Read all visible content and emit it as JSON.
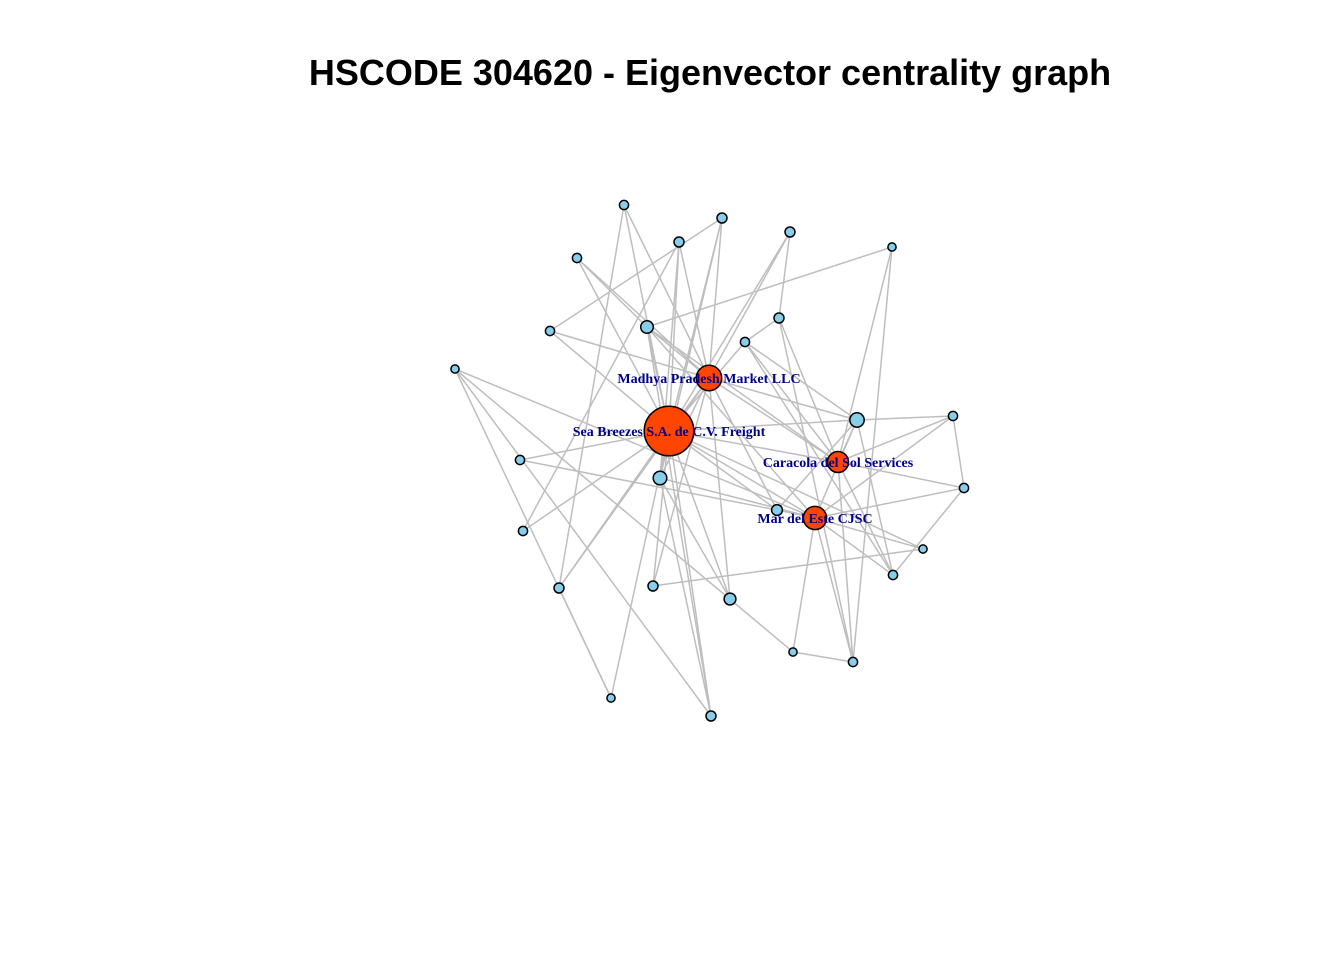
{
  "title": "HSCODE 304620 - Eigenvector centrality graph",
  "colors": {
    "edge": "#bebebe",
    "node_low": "#87ceeb",
    "node_high": "#ff4500",
    "node_border": "#000000",
    "label": "#00008b"
  },
  "nodes": [
    {
      "id": "sea_breezes",
      "label": "Sea Breezes S.A. de C.V. Freight",
      "group": "high",
      "centrality": 1.0
    },
    {
      "id": "madhya_pradesh",
      "label": "Madhya Pradesh Market LLC",
      "group": "high",
      "centrality": 0.45
    },
    {
      "id": "caracola",
      "label": "Caracola del Sol Services",
      "group": "high",
      "centrality": 0.35
    },
    {
      "id": "mar_del_este",
      "label": "Mar del Este CJSC",
      "group": "high",
      "centrality": 0.4
    },
    {
      "id": "n1",
      "label": "",
      "group": "low",
      "centrality": 0.18
    },
    {
      "id": "n2",
      "label": "",
      "group": "low",
      "centrality": 0.2
    },
    {
      "id": "n3",
      "label": "",
      "group": "low",
      "centrality": 0.16
    },
    {
      "id": "n4",
      "label": "",
      "group": "low",
      "centrality": 0.08
    },
    {
      "id": "n5",
      "label": "",
      "group": "low",
      "centrality": 0.14
    },
    {
      "id": "n6",
      "label": "",
      "group": "low",
      "centrality": 0.12
    },
    {
      "id": "n7",
      "label": "",
      "group": "low",
      "centrality": 0.1
    },
    {
      "id": "n8",
      "label": "",
      "group": "low",
      "centrality": 0.1
    },
    {
      "id": "n9",
      "label": "",
      "group": "low",
      "centrality": 0.1
    },
    {
      "id": "n10",
      "label": "",
      "group": "low",
      "centrality": 0.1
    },
    {
      "id": "n11",
      "label": "",
      "group": "low",
      "centrality": 0.08
    },
    {
      "id": "n12",
      "label": "",
      "group": "low",
      "centrality": 0.06
    },
    {
      "id": "n13",
      "label": "",
      "group": "low",
      "centrality": 0.1
    },
    {
      "id": "n14",
      "label": "",
      "group": "low",
      "centrality": 0.08
    },
    {
      "id": "n15",
      "label": "",
      "group": "low",
      "centrality": 0.08
    },
    {
      "id": "n16",
      "label": "",
      "group": "low",
      "centrality": 0.08
    },
    {
      "id": "n17",
      "label": "",
      "group": "low",
      "centrality": 0.08
    },
    {
      "id": "n18",
      "label": "",
      "group": "low",
      "centrality": 0.08
    },
    {
      "id": "n19",
      "label": "",
      "group": "low",
      "centrality": 0.1
    },
    {
      "id": "n20",
      "label": "",
      "group": "low",
      "centrality": 0.08
    },
    {
      "id": "n21",
      "label": "",
      "group": "low",
      "centrality": 0.1
    },
    {
      "id": "n22",
      "label": "",
      "group": "low",
      "centrality": 0.08
    },
    {
      "id": "n23",
      "label": "",
      "group": "low",
      "centrality": 0.08
    },
    {
      "id": "n24",
      "label": "",
      "group": "low",
      "centrality": 0.06
    },
    {
      "id": "n25",
      "label": "",
      "group": "low",
      "centrality": 0.06
    },
    {
      "id": "n26",
      "label": "",
      "group": "low",
      "centrality": 0.06
    },
    {
      "id": "n27",
      "label": "",
      "group": "low",
      "centrality": 0.06
    }
  ],
  "edges": [
    [
      "sea_breezes",
      "madhya_pradesh"
    ],
    [
      "sea_breezes",
      "caracola"
    ],
    [
      "sea_breezes",
      "mar_del_este"
    ],
    [
      "sea_breezes",
      "n1"
    ],
    [
      "sea_breezes",
      "n2"
    ],
    [
      "sea_breezes",
      "n3"
    ],
    [
      "sea_breezes",
      "n4"
    ],
    [
      "sea_breezes",
      "n5"
    ],
    [
      "sea_breezes",
      "n6"
    ],
    [
      "sea_breezes",
      "n8"
    ],
    [
      "sea_breezes",
      "n9"
    ],
    [
      "sea_breezes",
      "n10"
    ],
    [
      "sea_breezes",
      "n12"
    ],
    [
      "sea_breezes",
      "n13"
    ],
    [
      "sea_breezes",
      "n14"
    ],
    [
      "sea_breezes",
      "n15"
    ],
    [
      "sea_breezes",
      "n16"
    ],
    [
      "sea_breezes",
      "n17"
    ],
    [
      "sea_breezes",
      "n18"
    ],
    [
      "sea_breezes",
      "n19"
    ],
    [
      "sea_breezes",
      "n21"
    ],
    [
      "sea_breezes",
      "n24"
    ],
    [
      "madhya_pradesh",
      "n1"
    ],
    [
      "madhya_pradesh",
      "n3"
    ],
    [
      "madhya_pradesh",
      "n5"
    ],
    [
      "madhya_pradesh",
      "n6"
    ],
    [
      "madhya_pradesh",
      "n8"
    ],
    [
      "madhya_pradesh",
      "n9"
    ],
    [
      "madhya_pradesh",
      "n10"
    ],
    [
      "madhya_pradesh",
      "n13"
    ],
    [
      "madhya_pradesh",
      "n14"
    ],
    [
      "madhya_pradesh",
      "n17"
    ],
    [
      "madhya_pradesh",
      "n19"
    ],
    [
      "madhya_pradesh",
      "n2"
    ],
    [
      "madhya_pradesh",
      "n15"
    ],
    [
      "madhya_pradesh",
      "caracola"
    ],
    [
      "caracola",
      "n2"
    ],
    [
      "caracola",
      "n11"
    ],
    [
      "caracola",
      "n20"
    ],
    [
      "caracola",
      "n22"
    ],
    [
      "caracola",
      "n23"
    ],
    [
      "caracola",
      "n7"
    ],
    [
      "caracola",
      "n4"
    ],
    [
      "caracola",
      "n3"
    ],
    [
      "caracola",
      "n26"
    ],
    [
      "mar_del_este",
      "n2"
    ],
    [
      "mar_del_este",
      "n11"
    ],
    [
      "mar_del_este",
      "n20"
    ],
    [
      "mar_del_este",
      "n22"
    ],
    [
      "mar_del_este",
      "n23"
    ],
    [
      "mar_del_este",
      "n25"
    ],
    [
      "mar_del_este",
      "n3"
    ],
    [
      "mar_del_este",
      "n6"
    ],
    [
      "mar_del_este",
      "n12"
    ],
    [
      "mar_del_este",
      "n27"
    ],
    [
      "mar_del_este",
      "n1"
    ],
    [
      "n1",
      "n5"
    ],
    [
      "n1",
      "n9"
    ],
    [
      "n1",
      "n13"
    ],
    [
      "n1",
      "n21"
    ],
    [
      "n2",
      "n4"
    ],
    [
      "n2",
      "n6"
    ],
    [
      "n2",
      "n11"
    ],
    [
      "n2",
      "n20"
    ],
    [
      "n3",
      "n21"
    ],
    [
      "n3",
      "n14"
    ],
    [
      "n3",
      "n26"
    ],
    [
      "n4",
      "n7"
    ],
    [
      "n4",
      "n11"
    ],
    [
      "n7",
      "n10"
    ],
    [
      "n7",
      "n23"
    ],
    [
      "n11",
      "n22"
    ],
    [
      "n20",
      "n22"
    ],
    [
      "n24",
      "n27"
    ],
    [
      "n24",
      "n19"
    ],
    [
      "n27",
      "n21"
    ],
    [
      "n27",
      "n25"
    ],
    [
      "n25",
      "n23"
    ],
    [
      "n26",
      "n23"
    ],
    [
      "n12",
      "n8"
    ],
    [
      "n16",
      "n6"
    ],
    [
      "n18",
      "n9"
    ],
    [
      "n15",
      "n13"
    ],
    [
      "n19",
      "n17"
    ]
  ]
}
